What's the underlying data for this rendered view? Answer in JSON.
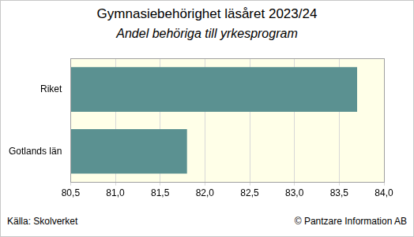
{
  "chart_data": {
    "type": "bar",
    "orientation": "horizontal",
    "title": "Gymnasiebehörighet läsåret 2023/24",
    "subtitle": "Andel behöriga till yrkesprogram",
    "categories": [
      "Riket",
      "Gotlands län"
    ],
    "values": [
      83.7,
      81.8
    ],
    "color": "#5b9191",
    "xlim": [
      80.5,
      84.0
    ],
    "xticks": [
      {
        "value": 80.5,
        "label": "80,5"
      },
      {
        "value": 81.0,
        "label": "81,0"
      },
      {
        "value": 81.5,
        "label": "81,5"
      },
      {
        "value": 82.0,
        "label": "82,0"
      },
      {
        "value": 82.5,
        "label": "82,5"
      },
      {
        "value": 83.0,
        "label": "83,0"
      },
      {
        "value": 83.5,
        "label": "83,5"
      },
      {
        "value": 84.0,
        "label": "84,0"
      }
    ],
    "grid": true,
    "annotations": [
      "Källa: Skolverket",
      "© Pantzare Information AB"
    ]
  }
}
